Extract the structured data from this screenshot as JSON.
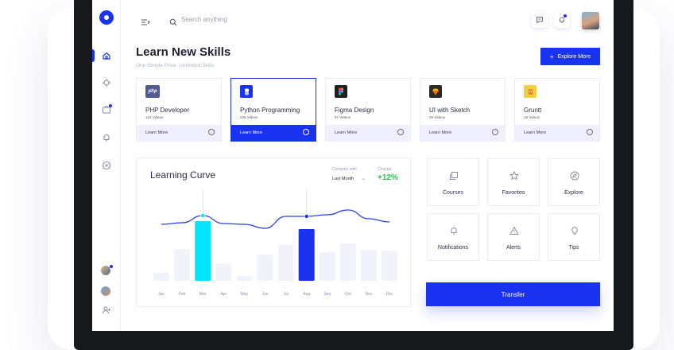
{
  "header": {
    "search_placeholder": "Search anything"
  },
  "page": {
    "title": "Learn New Skills",
    "subtitle": "One Simple Price. Unlimited Skills",
    "explore_button": "Explore More"
  },
  "skills": [
    {
      "icon_text": "php",
      "name": "PHP Developer",
      "count": "124 Videos",
      "action": "Learn More",
      "icon_color": "#4f5b93",
      "active": false
    },
    {
      "icon_text": "",
      "name": "Python Programming",
      "count": "236 Videos",
      "action": "Learn More",
      "icon_color": "#1a33f0",
      "active": true
    },
    {
      "icon_text": "",
      "name": "Figma Design",
      "count": "97 Videos",
      "action": "Learn More",
      "icon_color": "#1e1e1e",
      "active": false
    },
    {
      "icon_text": "",
      "name": "UI with Sketch",
      "count": "29 Videos",
      "action": "Learn More",
      "icon_color": "#2a2a2a",
      "active": false
    },
    {
      "icon_text": "",
      "name": "Gruntt",
      "count": "18 Videos",
      "action": "Learn More",
      "icon_color": "#f2d03b",
      "active": false
    }
  ],
  "learning_curve": {
    "title": "Learning Curve",
    "compare_label": "Compare with",
    "compare_value": "Last Month",
    "change_label": "Change",
    "change_value": "+12%"
  },
  "chart_data": {
    "type": "bar",
    "categories": [
      "Jan",
      "Feb",
      "Mar",
      "Apr",
      "May",
      "Jun",
      "Jul",
      "Aug",
      "Sep",
      "Oct",
      "Nov",
      "Dec"
    ],
    "values": [
      10,
      40,
      75,
      22,
      6,
      33,
      45,
      65,
      36,
      47,
      39,
      38
    ],
    "highlighted": [
      "Mar",
      "Aug"
    ],
    "line_values": [
      71,
      73,
      82,
      72,
      71,
      66,
      81,
      81,
      83,
      89,
      78,
      74
    ],
    "ylim": [
      0,
      100
    ]
  },
  "tiles": [
    {
      "label": "Courses",
      "icon": "copy-icon"
    },
    {
      "label": "Favorites",
      "icon": "star-icon"
    },
    {
      "label": "Explore",
      "icon": "compass-icon"
    },
    {
      "label": "Notifications",
      "icon": "bell-icon"
    },
    {
      "label": "Alerts",
      "icon": "warning-icon"
    },
    {
      "label": "Tips",
      "icon": "bulb-icon"
    }
  ],
  "transfer_button": "Transfer",
  "colors": {
    "accent": "#1a33f0",
    "highlight": "#00e5ff",
    "positive": "#1fc44a",
    "bar_muted": "#f2f2fa"
  }
}
